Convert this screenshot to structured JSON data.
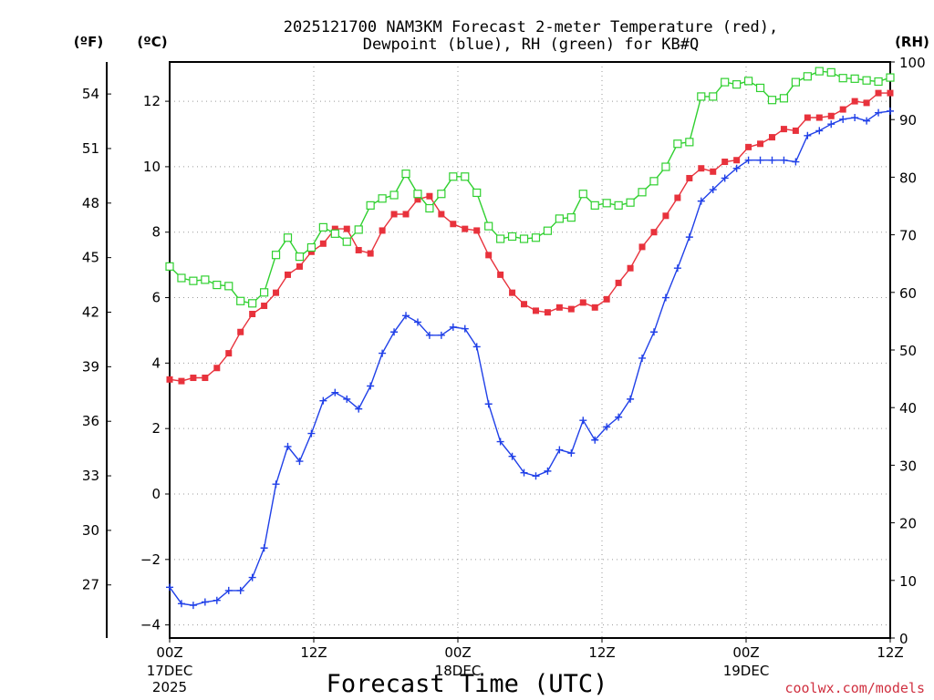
{
  "chart_data": {
    "type": "line",
    "title": "2025121700 NAM3KM Forecast 2-meter Temperature (red),",
    "subtitle": "Dewpoint (blue), RH (green) for KB#Q",
    "xlabel": "Forecast Time (UTC)",
    "credit": "coolwx.com/models",
    "units": {
      "f": "(ºF)",
      "c": "(ºC)",
      "rh": "(RH)"
    },
    "xlim": [
      0,
      60
    ],
    "ylim_c": [
      -4.4,
      13.2
    ],
    "ylim_rh": [
      0,
      100
    ],
    "x_ticks": [
      {
        "x": 0,
        "l1": "00Z",
        "l2": "17DEC",
        "l3": "2025"
      },
      {
        "x": 12,
        "l1": "12Z",
        "l2": "",
        "l3": ""
      },
      {
        "x": 24,
        "l1": "00Z",
        "l2": "18DEC",
        "l3": ""
      },
      {
        "x": 36,
        "l1": "12Z",
        "l2": "",
        "l3": ""
      },
      {
        "x": 48,
        "l1": "00Z",
        "l2": "19DEC",
        "l3": ""
      },
      {
        "x": 60,
        "l1": "12Z",
        "l2": "",
        "l3": ""
      }
    ],
    "c_ticks": [
      -4,
      -2,
      0,
      2,
      4,
      6,
      8,
      10,
      12
    ],
    "f_ticks": [
      27,
      30,
      33,
      36,
      39,
      42,
      45,
      48,
      51,
      54
    ],
    "rh_ticks": [
      0,
      10,
      20,
      30,
      40,
      50,
      60,
      70,
      80,
      90,
      100
    ],
    "series": [
      {
        "name": "2-meter Temperature",
        "axis": "c",
        "color": "#e8323c",
        "marker": "filled-square",
        "values": [
          3.5,
          3.45,
          3.55,
          3.55,
          3.85,
          4.3,
          4.95,
          5.5,
          5.75,
          6.15,
          6.7,
          6.95,
          7.4,
          7.65,
          8.1,
          8.1,
          7.45,
          7.35,
          8.05,
          8.55,
          8.55,
          9.0,
          9.1,
          8.55,
          8.25,
          8.1,
          8.05,
          7.3,
          6.7,
          6.15,
          5.8,
          5.6,
          5.55,
          5.7,
          5.65,
          5.85,
          5.7,
          5.95,
          6.45,
          6.9,
          7.55,
          8.0,
          8.5,
          9.05,
          9.65,
          9.95,
          9.85,
          10.15,
          10.2,
          10.6,
          10.7,
          10.9,
          11.15,
          11.1,
          11.5,
          11.5,
          11.55,
          11.75,
          12.0,
          11.95,
          12.25,
          12.25
        ]
      },
      {
        "name": "Dewpoint",
        "axis": "c",
        "color": "#2040e8",
        "marker": "plus",
        "values": [
          -2.85,
          -3.35,
          -3.4,
          -3.3,
          -3.25,
          -2.95,
          -2.95,
          -2.55,
          -1.65,
          0.3,
          1.45,
          1.0,
          1.85,
          2.85,
          3.1,
          2.9,
          2.6,
          3.3,
          4.3,
          4.95,
          5.45,
          5.25,
          4.85,
          4.85,
          5.1,
          5.05,
          4.5,
          2.75,
          1.6,
          1.15,
          0.65,
          0.55,
          0.7,
          1.35,
          1.25,
          2.25,
          1.65,
          2.05,
          2.35,
          2.9,
          4.15,
          4.95,
          6.0,
          6.9,
          7.85,
          8.95,
          9.3,
          9.65,
          9.95,
          10.2,
          10.2,
          10.2,
          10.2,
          10.15,
          10.95,
          11.1,
          11.3,
          11.45,
          11.5,
          11.4,
          11.65,
          11.7
        ]
      },
      {
        "name": "RH",
        "axis": "rh",
        "color": "#30d030",
        "marker": "open-square",
        "values": [
          64.5,
          62.5,
          62,
          62.2,
          61.3,
          61.1,
          58.5,
          58.1,
          60,
          66.5,
          69.5,
          66.2,
          67.8,
          71.3,
          70.2,
          68.8,
          70.9,
          75.1,
          76.3,
          76.9,
          80.6,
          77.1,
          74.6,
          77.1,
          80.1,
          80.1,
          77.3,
          71.5,
          69.3,
          69.7,
          69.3,
          69.5,
          70.7,
          72.8,
          73,
          77.1,
          75.1,
          75.5,
          75.1,
          75.6,
          77.4,
          79.3,
          81.8,
          85.8,
          86.1,
          94,
          94,
          96.5,
          96.1,
          96.7,
          95.5,
          93.4,
          93.7,
          96.5,
          97.5,
          98.4,
          98.2,
          97.2,
          97.1,
          96.8,
          96.6,
          97.3
        ]
      }
    ]
  }
}
